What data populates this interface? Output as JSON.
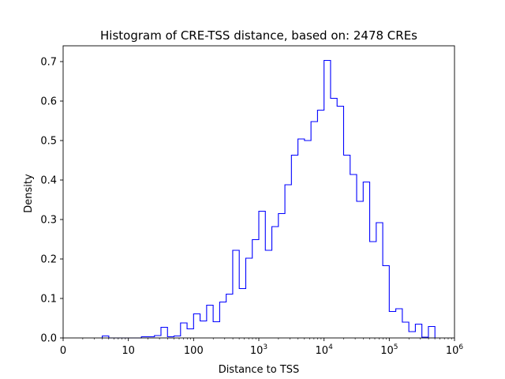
{
  "chart_data": {
    "type": "histogram-step",
    "title": "Histogram of CRE-TSS distance, based on: 2478 CREs",
    "xlabel": "Distance to TSS",
    "ylabel": "Density",
    "xscale": "log",
    "xlim": [
      1,
      1000000
    ],
    "ylim": [
      0,
      0.74
    ],
    "x_ticks": [
      {
        "value": 1,
        "label": "0"
      },
      {
        "value": 10,
        "label": "10"
      },
      {
        "value": 100,
        "label": "100"
      },
      {
        "value": 1000,
        "label": "10",
        "exp": "3"
      },
      {
        "value": 10000,
        "label": "10",
        "exp": "4"
      },
      {
        "value": 100000,
        "label": "10",
        "exp": "5"
      },
      {
        "value": 1000000,
        "label": "10",
        "exp": "6"
      }
    ],
    "y_ticks": [
      {
        "value": 0.0,
        "label": "0.0"
      },
      {
        "value": 0.1,
        "label": "0.1"
      },
      {
        "value": 0.2,
        "label": "0.2"
      },
      {
        "value": 0.3,
        "label": "0.3"
      },
      {
        "value": 0.4,
        "label": "0.4"
      },
      {
        "value": 0.5,
        "label": "0.5"
      },
      {
        "value": 0.6,
        "label": "0.6"
      },
      {
        "value": 0.7,
        "label": "0.7"
      }
    ],
    "bins": {
      "log10_start": 0.6,
      "log10_width": 0.1,
      "values": [
        0.005,
        0.0,
        0.0,
        0.0,
        0.0,
        0.0,
        0.003,
        0.003,
        0.006,
        0.027,
        0.003,
        0.005,
        0.038,
        0.023,
        0.061,
        0.043,
        0.083,
        0.041,
        0.091,
        0.111,
        0.222,
        0.125,
        0.202,
        0.249,
        0.321,
        0.222,
        0.282,
        0.315,
        0.388,
        0.463,
        0.504,
        0.5,
        0.548,
        0.577,
        0.703,
        0.607,
        0.587,
        0.463,
        0.414,
        0.346,
        0.395,
        0.244,
        0.292,
        0.183,
        0.067,
        0.074,
        0.04,
        0.016,
        0.035,
        0.002,
        0.029
      ]
    },
    "colors": {
      "line": "#0000ff",
      "axes": "#000000",
      "background": "#ffffff"
    }
  }
}
